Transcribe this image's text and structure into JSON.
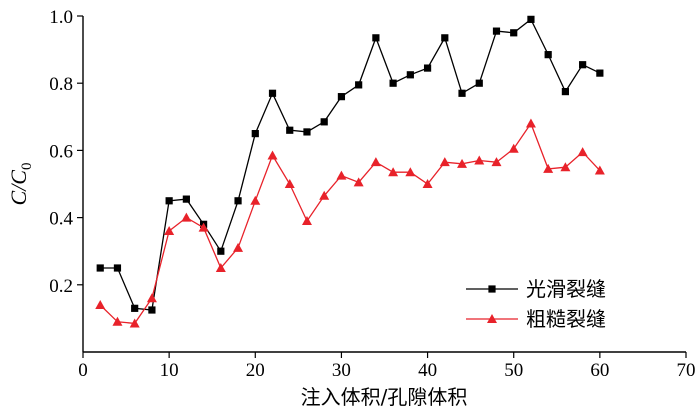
{
  "chart_data": {
    "type": "line",
    "xlabel": "注入体积/孔隙体积",
    "ylabel": {
      "main": "C/C",
      "subscript": "0"
    },
    "xlim": [
      0,
      70
    ],
    "ylim": [
      0,
      1.0
    ],
    "x_ticks": [
      0,
      10,
      20,
      30,
      40,
      50,
      60,
      70
    ],
    "x_tick_labels": [
      "0",
      "10",
      "20",
      "30",
      "40",
      "50",
      "60",
      "70"
    ],
    "y_ticks": [
      0.2,
      0.4,
      0.6,
      0.8,
      1.0
    ],
    "y_tick_labels": [
      "0.2",
      "0.4",
      "0.6",
      "0.8",
      "1.0"
    ],
    "legend_position": "bottom-right",
    "grid": false,
    "series": [
      {
        "name": "光滑裂缝",
        "color": "#000000",
        "marker": "square",
        "points": [
          [
            2,
            0.25
          ],
          [
            4,
            0.25
          ],
          [
            6,
            0.13
          ],
          [
            8,
            0.125
          ],
          [
            10,
            0.45
          ],
          [
            12,
            0.455
          ],
          [
            14,
            0.38
          ],
          [
            16,
            0.3
          ],
          [
            18,
            0.45
          ],
          [
            20,
            0.65
          ],
          [
            22,
            0.77
          ],
          [
            24,
            0.66
          ],
          [
            26,
            0.655
          ],
          [
            28,
            0.685
          ],
          [
            30,
            0.76
          ],
          [
            32,
            0.795
          ],
          [
            34,
            0.935
          ],
          [
            36,
            0.8
          ],
          [
            38,
            0.825
          ],
          [
            40,
            0.845
          ],
          [
            42,
            0.935
          ],
          [
            44,
            0.77
          ],
          [
            46,
            0.8
          ],
          [
            48,
            0.955
          ],
          [
            50,
            0.95
          ],
          [
            52,
            0.99
          ],
          [
            54,
            0.885
          ],
          [
            56,
            0.775
          ],
          [
            58,
            0.855
          ],
          [
            60,
            0.83
          ]
        ]
      },
      {
        "name": "粗糙裂缝",
        "color": "#e8222a",
        "marker": "triangle",
        "points": [
          [
            2,
            0.14
          ],
          [
            4,
            0.09
          ],
          [
            6,
            0.085
          ],
          [
            8,
            0.16
          ],
          [
            10,
            0.36
          ],
          [
            12,
            0.4
          ],
          [
            14,
            0.37
          ],
          [
            16,
            0.25
          ],
          [
            18,
            0.31
          ],
          [
            20,
            0.45
          ],
          [
            22,
            0.585
          ],
          [
            24,
            0.5
          ],
          [
            26,
            0.39
          ],
          [
            28,
            0.465
          ],
          [
            30,
            0.525
          ],
          [
            32,
            0.505
          ],
          [
            34,
            0.565
          ],
          [
            36,
            0.535
          ],
          [
            38,
            0.535
          ],
          [
            40,
            0.5
          ],
          [
            42,
            0.565
          ],
          [
            44,
            0.56
          ],
          [
            46,
            0.57
          ],
          [
            48,
            0.565
          ],
          [
            50,
            0.605
          ],
          [
            52,
            0.68
          ],
          [
            54,
            0.545
          ],
          [
            56,
            0.55
          ],
          [
            58,
            0.595
          ],
          [
            60,
            0.54
          ]
        ]
      }
    ]
  }
}
